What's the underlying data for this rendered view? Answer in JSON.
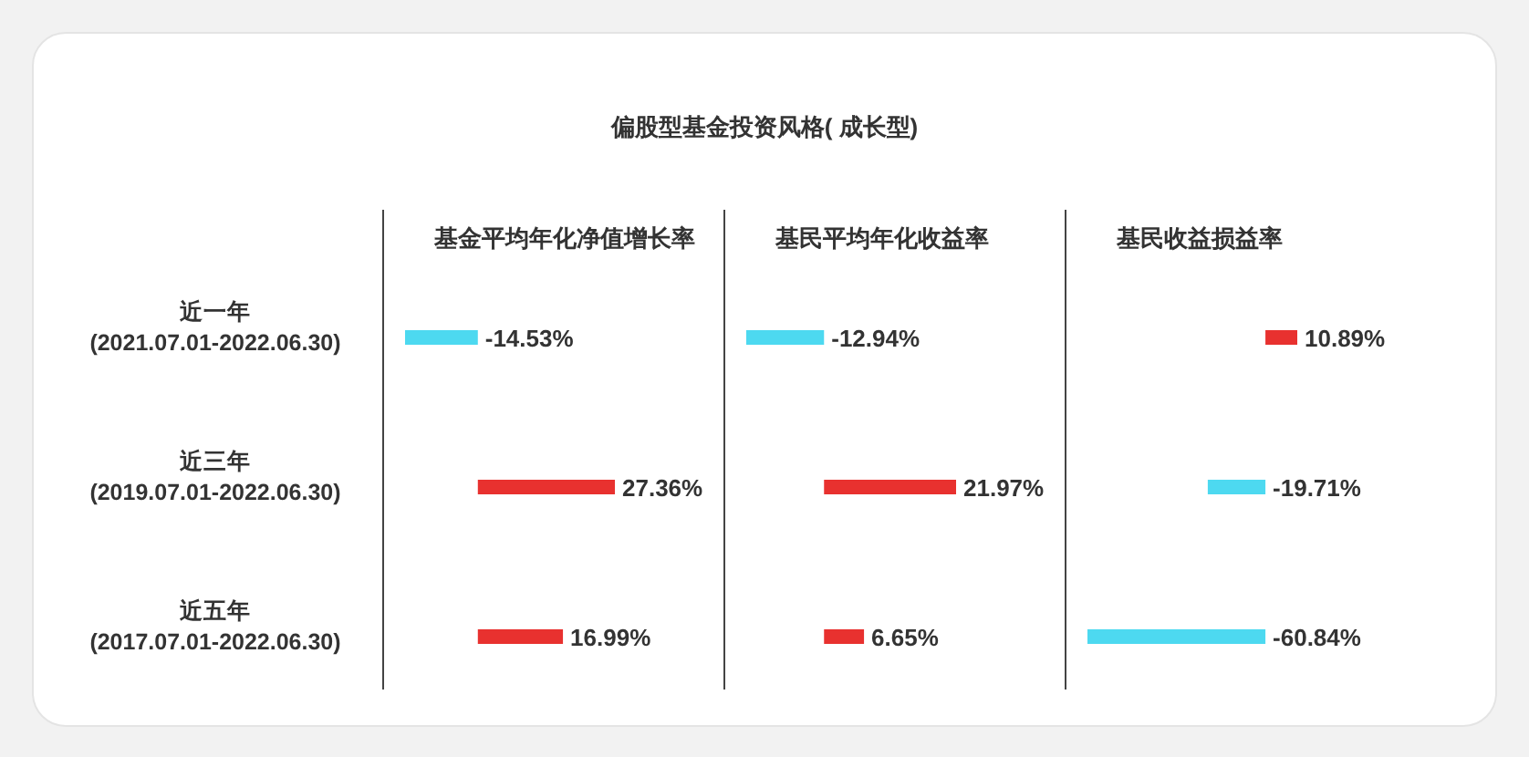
{
  "chart_data": [
    {
      "type": "bar",
      "orientation": "horizontal",
      "title": "基金平均年化净值增长率",
      "annotations": [
        "偏股型基金投资风格( 成长型)"
      ],
      "categories": [
        "近一年\n(2021.07.01-2022.06.30)",
        "近三年\n(2019.07.01-2022.06.30)",
        "近五年\n(2017.07.01-2022.06.30)"
      ],
      "values": [
        -14.53,
        27.36,
        16.99
      ],
      "value_labels": [
        "-14.53%",
        "27.36%",
        "16.99%"
      ],
      "colors": [
        "#4dd9f0",
        "#e8312f",
        "#e8312f"
      ]
    },
    {
      "type": "bar",
      "orientation": "horizontal",
      "title": "基民平均年化收益率",
      "categories": [
        null,
        null,
        null
      ],
      "values": [
        -12.94,
        21.97,
        6.65
      ],
      "value_labels": [
        "-12.94%",
        "21.97%",
        "6.65%"
      ],
      "colors": [
        "#4dd9f0",
        "#e8312f",
        "#e8312f"
      ]
    },
    {
      "type": "bar",
      "orientation": "horizontal",
      "title": "基民收益损益率",
      "categories": [
        null,
        null,
        null
      ],
      "values": [
        10.89,
        -19.71,
        -60.84
      ],
      "value_labels": [
        "10.89%",
        "-19.71%",
        "-60.84%"
      ],
      "colors": [
        "#e8312f",
        "#4dd9f0",
        "#4dd9f0"
      ]
    }
  ]
}
